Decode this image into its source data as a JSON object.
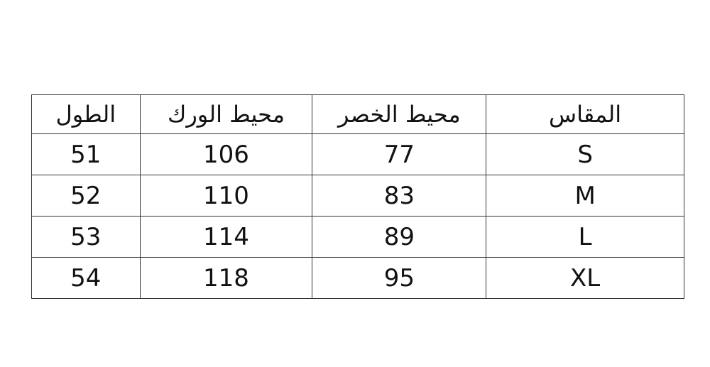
{
  "table": {
    "headers": [
      "المقاس",
      "محيط الخصر",
      "محيط الورك",
      "الطول"
    ],
    "rows": [
      [
        "S",
        "77",
        "106",
        "51"
      ],
      [
        "M",
        "83",
        "110",
        "52"
      ],
      [
        "L",
        "89",
        "114",
        "53"
      ],
      [
        "XL",
        "95",
        "118",
        "54"
      ]
    ]
  }
}
